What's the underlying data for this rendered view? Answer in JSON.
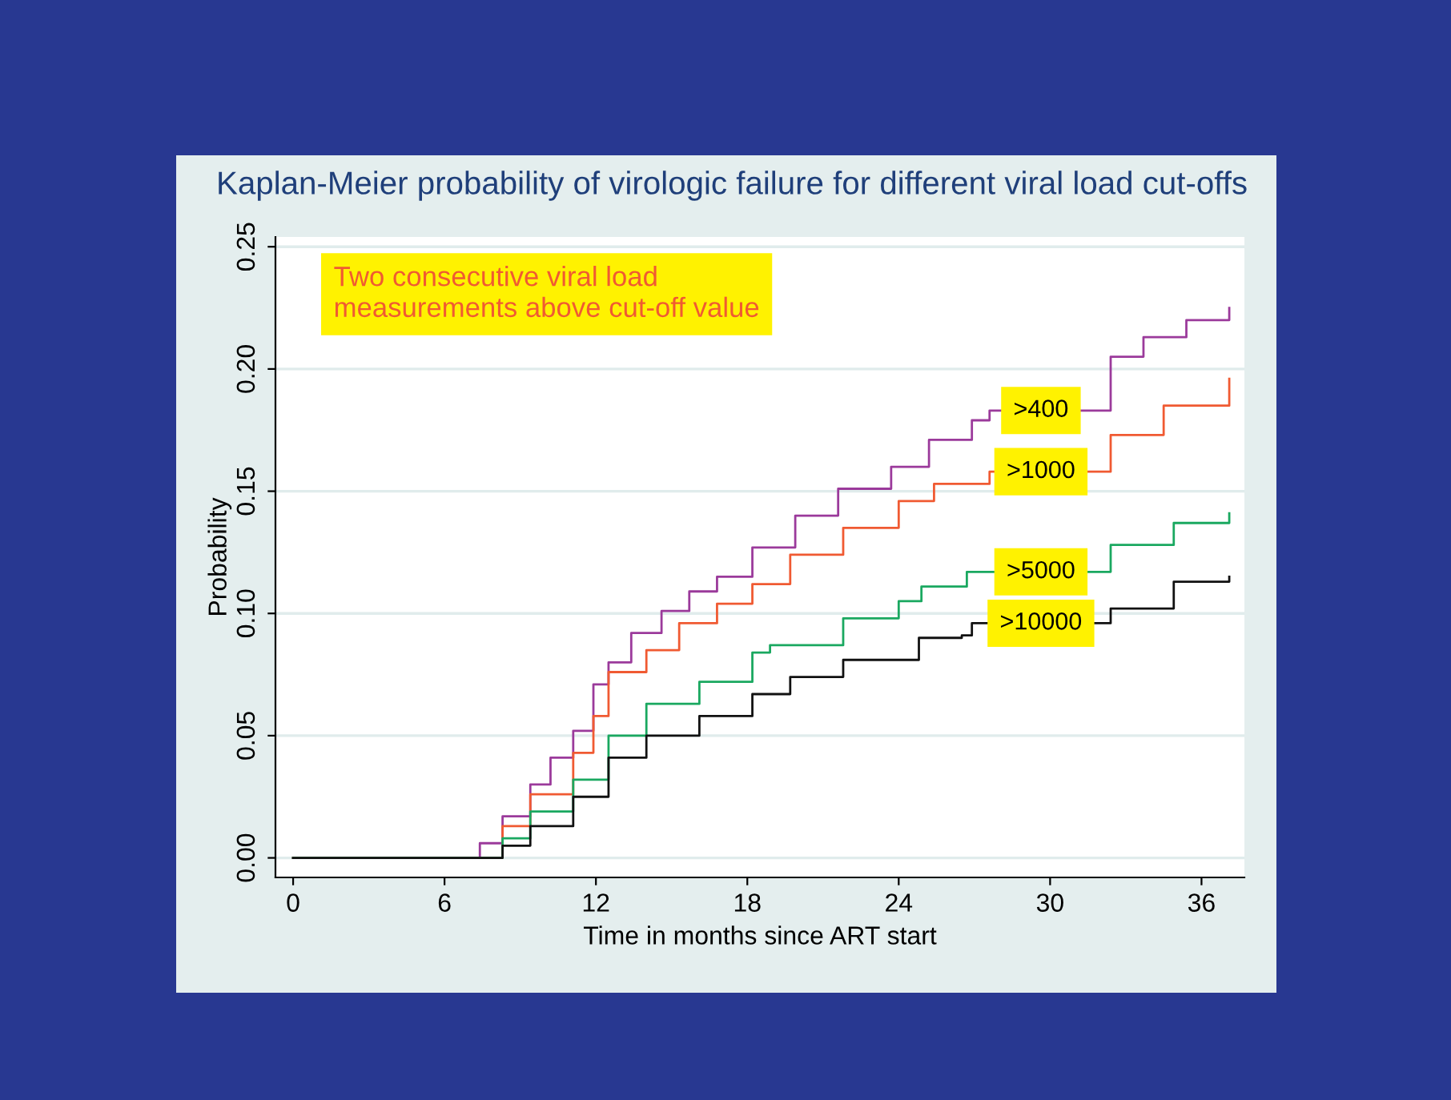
{
  "chart_data": {
    "type": "step",
    "title": "Kaplan-Meier probability of virologic failure for different viral load cut-offs",
    "xlabel": "Time in months since ART start",
    "ylabel": "Probability",
    "annotations": [
      "Two consecutive viral load\nmeasurements above cut-off value"
    ],
    "xlim": [
      -0.7,
      37.7
    ],
    "ylim": [
      -0.008,
      0.254
    ],
    "xticks": [
      0,
      6,
      12,
      18,
      24,
      30,
      36
    ],
    "yticks": [
      {
        "value": 0,
        "label": "0.00"
      },
      {
        "value": 0.05,
        "label": "0.05"
      },
      {
        "value": 0.1,
        "label": "0.10"
      },
      {
        "value": 0.15,
        "label": "0.15"
      },
      {
        "value": 0.2,
        "label": "0.20"
      },
      {
        "value": 0.25,
        "label": "0.25"
      }
    ],
    "grid": "y",
    "line_style": "solid",
    "marker": "none",
    "series": [
      {
        "name": ">400",
        "color": "#9b3a9b",
        "x": [
          0,
          6,
          7.4,
          8.3,
          9.4,
          10.2,
          11.1,
          11.9,
          12.5,
          13.4,
          14.6,
          15.7,
          16.8,
          18.2,
          19.9,
          21.6,
          23.7,
          25.2,
          26.9,
          27.6,
          32.4,
          33.7,
          35.4,
          37.1
        ],
        "values": [
          0,
          0,
          0.006,
          0.017,
          0.03,
          0.041,
          0.052,
          0.071,
          0.08,
          0.092,
          0.101,
          0.109,
          0.115,
          0.127,
          0.14,
          0.151,
          0.16,
          0.171,
          0.179,
          0.183,
          0.205,
          0.213,
          0.22,
          0.225
        ]
      },
      {
        "name": ">1000",
        "color": "#f05a32",
        "x": [
          0,
          6,
          8.3,
          9.4,
          11.1,
          11.9,
          12.5,
          14.0,
          15.3,
          16.8,
          18.2,
          19.7,
          21.8,
          24.0,
          25.4,
          27.6,
          32.4,
          34.5,
          37.1
        ],
        "values": [
          0,
          0,
          0.013,
          0.026,
          0.043,
          0.058,
          0.076,
          0.085,
          0.096,
          0.104,
          0.112,
          0.124,
          0.135,
          0.146,
          0.153,
          0.158,
          0.173,
          0.185,
          0.196
        ]
      },
      {
        "name": ">5000",
        "color": "#1aa860",
        "x": [
          0,
          6,
          8.3,
          9.4,
          11.1,
          12.5,
          14.0,
          16.1,
          18.2,
          18.9,
          21.8,
          24.0,
          24.9,
          26.7,
          32.4,
          34.9,
          37.1
        ],
        "values": [
          0,
          0,
          0.008,
          0.019,
          0.032,
          0.05,
          0.063,
          0.072,
          0.084,
          0.087,
          0.098,
          0.105,
          0.111,
          0.117,
          0.128,
          0.137,
          0.141
        ]
      },
      {
        "name": ">10000",
        "color": "#111111",
        "x": [
          0,
          6,
          8.3,
          9.4,
          11.1,
          12.5,
          14.0,
          16.1,
          18.2,
          19.7,
          21.8,
          24.8,
          26.5,
          26.9,
          32.4,
          34.9,
          37.1
        ],
        "values": [
          0,
          0,
          0.005,
          0.013,
          0.025,
          0.041,
          0.05,
          0.058,
          0.067,
          0.074,
          0.081,
          0.09,
          0.091,
          0.096,
          0.102,
          0.113,
          0.115
        ]
      }
    ]
  }
}
